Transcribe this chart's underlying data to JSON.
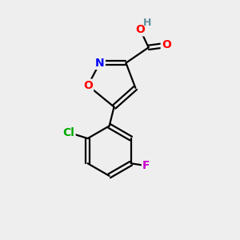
{
  "background_color": "#eeeeee",
  "atom_colors": {
    "C": "#000000",
    "H": "#5f8fa0",
    "O": "#ff0000",
    "N": "#0000ff",
    "Cl": "#00aa00",
    "F": "#cc00cc"
  },
  "bond_color": "#000000"
}
